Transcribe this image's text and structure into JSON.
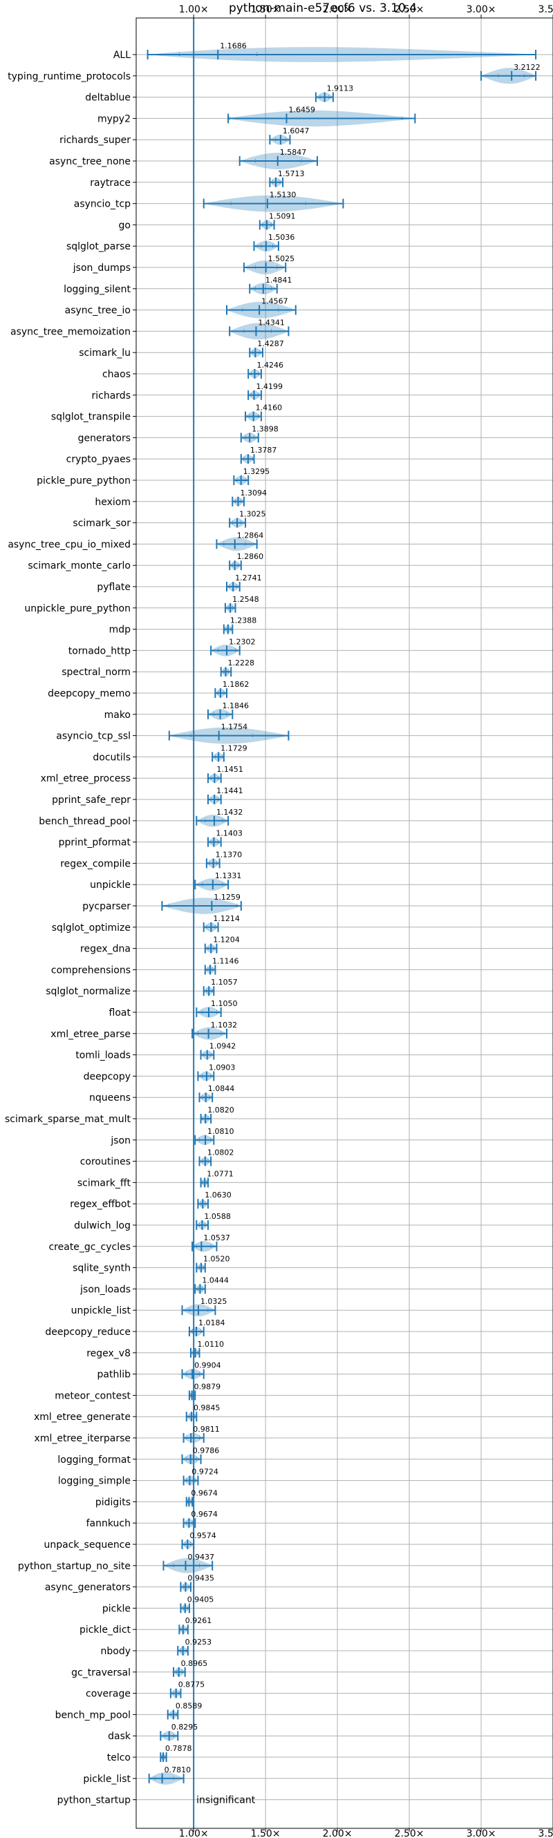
{
  "chart_data": {
    "type": "violin",
    "title": "python-main-e57ecf6 vs. 3.10.4",
    "xlabel": "",
    "ylabel": "",
    "xlim": [
      0.6,
      3.5
    ],
    "xticks": [
      1.0,
      1.5,
      2.0,
      2.5,
      3.0,
      3.5
    ],
    "xtick_labels": [
      "1.00×",
      "1.50×",
      "2.00×",
      "2.50×",
      "3.00×",
      "3.50×"
    ],
    "xaxis_position": "top-and-bottom",
    "grid": true,
    "reference_line_x": 1.0,
    "benchmarks": [
      {
        "name": "ALL",
        "value": "1.1686",
        "mean": 1.1686,
        "min": 0.68,
        "max": 3.38,
        "q1": 0.9,
        "q3": 1.44
      },
      {
        "name": "typing_runtime_protocols",
        "value": "3.2122",
        "mean": 3.2122,
        "min": 3.0,
        "max": 3.38,
        "q1": 3.12,
        "q3": 3.3
      },
      {
        "name": "deltablue",
        "value": "1.9113",
        "mean": 1.9113,
        "min": 1.85,
        "max": 1.97,
        "q1": 1.88,
        "q3": 1.94
      },
      {
        "name": "mypy2",
        "value": "1.6459",
        "mean": 1.6459,
        "min": 1.24,
        "max": 2.54,
        "q1": 1.25,
        "q3": 2.45
      },
      {
        "name": "richards_super",
        "value": "1.6047",
        "mean": 1.6047,
        "min": 1.53,
        "max": 1.67,
        "q1": 1.57,
        "q3": 1.64
      },
      {
        "name": "async_tree_none",
        "value": "1.5847",
        "mean": 1.5847,
        "min": 1.32,
        "max": 1.86,
        "q1": 1.43,
        "q3": 1.75
      },
      {
        "name": "raytrace",
        "value": "1.5713",
        "mean": 1.5713,
        "min": 1.53,
        "max": 1.62,
        "q1": 1.55,
        "q3": 1.6
      },
      {
        "name": "asyncio_tcp",
        "value": "1.5130",
        "mean": 1.513,
        "min": 1.07,
        "max": 2.04,
        "q1": 1.26,
        "q3": 1.78
      },
      {
        "name": "go",
        "value": "1.5091",
        "mean": 1.5091,
        "min": 1.46,
        "max": 1.56,
        "q1": 1.48,
        "q3": 1.54
      },
      {
        "name": "sqlglot_parse",
        "value": "1.5036",
        "mean": 1.5036,
        "min": 1.42,
        "max": 1.59,
        "q1": 1.47,
        "q3": 1.55
      },
      {
        "name": "json_dumps",
        "value": "1.5025",
        "mean": 1.5025,
        "min": 1.35,
        "max": 1.64,
        "q1": 1.43,
        "q3": 1.58
      },
      {
        "name": "logging_silent",
        "value": "1.4841",
        "mean": 1.4841,
        "min": 1.39,
        "max": 1.58,
        "q1": 1.43,
        "q3": 1.54
      },
      {
        "name": "async_tree_io",
        "value": "1.4567",
        "mean": 1.4567,
        "min": 1.23,
        "max": 1.71,
        "q1": 1.34,
        "q3": 1.59
      },
      {
        "name": "async_tree_memoization",
        "value": "1.4341",
        "mean": 1.4341,
        "min": 1.25,
        "max": 1.66,
        "q1": 1.35,
        "q3": 1.54
      },
      {
        "name": "scimark_lu",
        "value": "1.4287",
        "mean": 1.4287,
        "min": 1.39,
        "max": 1.48,
        "q1": 1.41,
        "q3": 1.46
      },
      {
        "name": "chaos",
        "value": "1.4246",
        "mean": 1.4246,
        "min": 1.38,
        "max": 1.47,
        "q1": 1.4,
        "q3": 1.45
      },
      {
        "name": "richards",
        "value": "1.4199",
        "mean": 1.4199,
        "min": 1.38,
        "max": 1.47,
        "q1": 1.4,
        "q3": 1.45
      },
      {
        "name": "sqlglot_transpile",
        "value": "1.4160",
        "mean": 1.416,
        "min": 1.36,
        "max": 1.47,
        "q1": 1.39,
        "q3": 1.45
      },
      {
        "name": "generators",
        "value": "1.3898",
        "mean": 1.3898,
        "min": 1.33,
        "max": 1.45,
        "q1": 1.36,
        "q3": 1.42
      },
      {
        "name": "crypto_pyaes",
        "value": "1.3787",
        "mean": 1.3787,
        "min": 1.33,
        "max": 1.42,
        "q1": 1.35,
        "q3": 1.41
      },
      {
        "name": "pickle_pure_python",
        "value": "1.3295",
        "mean": 1.3295,
        "min": 1.28,
        "max": 1.38,
        "q1": 1.3,
        "q3": 1.36
      },
      {
        "name": "hexiom",
        "value": "1.3094",
        "mean": 1.3094,
        "min": 1.27,
        "max": 1.35,
        "q1": 1.29,
        "q3": 1.33
      },
      {
        "name": "scimark_sor",
        "value": "1.3025",
        "mean": 1.3025,
        "min": 1.25,
        "max": 1.36,
        "q1": 1.27,
        "q3": 1.33
      },
      {
        "name": "async_tree_cpu_io_mixed",
        "value": "1.2864",
        "mean": 1.2864,
        "min": 1.16,
        "max": 1.44,
        "q1": 1.21,
        "q3": 1.36
      },
      {
        "name": "scimark_monte_carlo",
        "value": "1.2860",
        "mean": 1.286,
        "min": 1.25,
        "max": 1.33,
        "q1": 1.27,
        "q3": 1.31
      },
      {
        "name": "pyflate",
        "value": "1.2741",
        "mean": 1.2741,
        "min": 1.23,
        "max": 1.32,
        "q1": 1.25,
        "q3": 1.3
      },
      {
        "name": "unpickle_pure_python",
        "value": "1.2548",
        "mean": 1.2548,
        "min": 1.22,
        "max": 1.29,
        "q1": 1.24,
        "q3": 1.27
      },
      {
        "name": "mdp",
        "value": "1.2388",
        "mean": 1.2388,
        "min": 1.21,
        "max": 1.27,
        "q1": 1.22,
        "q3": 1.26
      },
      {
        "name": "tornado_http",
        "value": "1.2302",
        "mean": 1.2302,
        "min": 1.12,
        "max": 1.32,
        "q1": 1.17,
        "q3": 1.29
      },
      {
        "name": "spectral_norm",
        "value": "1.2228",
        "mean": 1.2228,
        "min": 1.19,
        "max": 1.26,
        "q1": 1.21,
        "q3": 1.24
      },
      {
        "name": "deepcopy_memo",
        "value": "1.1862",
        "mean": 1.1862,
        "min": 1.15,
        "max": 1.23,
        "q1": 1.17,
        "q3": 1.21
      },
      {
        "name": "mako",
        "value": "1.1846",
        "mean": 1.1846,
        "min": 1.1,
        "max": 1.27,
        "q1": 1.14,
        "q3": 1.23
      },
      {
        "name": "asyncio_tcp_ssl",
        "value": "1.1754",
        "mean": 1.1754,
        "min": 0.83,
        "max": 1.66,
        "q1": 0.98,
        "q3": 1.41
      },
      {
        "name": "docutils",
        "value": "1.1729",
        "mean": 1.1729,
        "min": 1.13,
        "max": 1.21,
        "q1": 1.15,
        "q3": 1.2
      },
      {
        "name": "xml_etree_process",
        "value": "1.1451",
        "mean": 1.1451,
        "min": 1.1,
        "max": 1.19,
        "q1": 1.12,
        "q3": 1.17
      },
      {
        "name": "pprint_safe_repr",
        "value": "1.1441",
        "mean": 1.1441,
        "min": 1.1,
        "max": 1.19,
        "q1": 1.12,
        "q3": 1.17
      },
      {
        "name": "bench_thread_pool",
        "value": "1.1432",
        "mean": 1.1432,
        "min": 1.02,
        "max": 1.24,
        "q1": 1.08,
        "q3": 1.2
      },
      {
        "name": "pprint_pformat",
        "value": "1.1403",
        "mean": 1.1403,
        "min": 1.1,
        "max": 1.19,
        "q1": 1.12,
        "q3": 1.17
      },
      {
        "name": "regex_compile",
        "value": "1.1370",
        "mean": 1.137,
        "min": 1.09,
        "max": 1.18,
        "q1": 1.11,
        "q3": 1.16
      },
      {
        "name": "unpickle",
        "value": "1.1331",
        "mean": 1.1331,
        "min": 1.01,
        "max": 1.24,
        "q1": 1.06,
        "q3": 1.2
      },
      {
        "name": "pycparser",
        "value": "1.1259",
        "mean": 1.1259,
        "min": 0.78,
        "max": 1.33,
        "q1": 0.83,
        "q3": 1.3
      },
      {
        "name": "sqlglot_optimize",
        "value": "1.1214",
        "mean": 1.1214,
        "min": 1.07,
        "max": 1.17,
        "q1": 1.09,
        "q3": 1.15
      },
      {
        "name": "regex_dna",
        "value": "1.1204",
        "mean": 1.1204,
        "min": 1.08,
        "max": 1.16,
        "q1": 1.1,
        "q3": 1.14
      },
      {
        "name": "comprehensions",
        "value": "1.1146",
        "mean": 1.1146,
        "min": 1.08,
        "max": 1.15,
        "q1": 1.1,
        "q3": 1.13
      },
      {
        "name": "sqlglot_normalize",
        "value": "1.1057",
        "mean": 1.1057,
        "min": 1.07,
        "max": 1.14,
        "q1": 1.09,
        "q3": 1.13
      },
      {
        "name": "float",
        "value": "1.1050",
        "mean": 1.105,
        "min": 1.02,
        "max": 1.19,
        "q1": 1.06,
        "q3": 1.16
      },
      {
        "name": "xml_etree_parse",
        "value": "1.1032",
        "mean": 1.1032,
        "min": 0.99,
        "max": 1.23,
        "q1": 1.03,
        "q3": 1.19
      },
      {
        "name": "tomli_loads",
        "value": "1.0942",
        "mean": 1.0942,
        "min": 1.05,
        "max": 1.14,
        "q1": 1.07,
        "q3": 1.12
      },
      {
        "name": "deepcopy",
        "value": "1.0903",
        "mean": 1.0903,
        "min": 1.03,
        "max": 1.14,
        "q1": 1.06,
        "q3": 1.12
      },
      {
        "name": "nqueens",
        "value": "1.0844",
        "mean": 1.0844,
        "min": 1.04,
        "max": 1.13,
        "q1": 1.06,
        "q3": 1.11
      },
      {
        "name": "scimark_sparse_mat_mult",
        "value": "1.0820",
        "mean": 1.082,
        "min": 1.05,
        "max": 1.12,
        "q1": 1.06,
        "q3": 1.1
      },
      {
        "name": "json",
        "value": "1.0810",
        "mean": 1.081,
        "min": 1.01,
        "max": 1.14,
        "q1": 1.04,
        "q3": 1.12
      },
      {
        "name": "coroutines",
        "value": "1.0802",
        "mean": 1.0802,
        "min": 1.04,
        "max": 1.12,
        "q1": 1.06,
        "q3": 1.1
      },
      {
        "name": "scimark_fft",
        "value": "1.0771",
        "mean": 1.0771,
        "min": 1.05,
        "max": 1.1,
        "q1": 1.06,
        "q3": 1.09
      },
      {
        "name": "regex_effbot",
        "value": "1.0630",
        "mean": 1.063,
        "min": 1.03,
        "max": 1.1,
        "q1": 1.05,
        "q3": 1.08
      },
      {
        "name": "dulwich_log",
        "value": "1.0588",
        "mean": 1.0588,
        "min": 1.02,
        "max": 1.1,
        "q1": 1.04,
        "q3": 1.08
      },
      {
        "name": "create_gc_cycles",
        "value": "1.0537",
        "mean": 1.0537,
        "min": 0.99,
        "max": 1.16,
        "q1": 1.02,
        "q3": 1.12
      },
      {
        "name": "sqlite_synth",
        "value": "1.0520",
        "mean": 1.052,
        "min": 1.02,
        "max": 1.08,
        "q1": 1.04,
        "q3": 1.07
      },
      {
        "name": "json_loads",
        "value": "1.0444",
        "mean": 1.0444,
        "min": 1.01,
        "max": 1.08,
        "q1": 1.03,
        "q3": 1.06
      },
      {
        "name": "unpickle_list",
        "value": "1.0325",
        "mean": 1.0325,
        "min": 0.92,
        "max": 1.15,
        "q1": 0.97,
        "q3": 1.1
      },
      {
        "name": "deepcopy_reduce",
        "value": "1.0184",
        "mean": 1.0184,
        "min": 0.97,
        "max": 1.07,
        "q1": 0.99,
        "q3": 1.05
      },
      {
        "name": "regex_v8",
        "value": "1.0110",
        "mean": 1.011,
        "min": 0.98,
        "max": 1.04,
        "q1": 1.0,
        "q3": 1.03
      },
      {
        "name": "pathlib",
        "value": "0.9904",
        "mean": 0.9904,
        "min": 0.92,
        "max": 1.07,
        "q1": 0.95,
        "q3": 1.04
      },
      {
        "name": "meteor_contest",
        "value": "0.9879",
        "mean": 0.9879,
        "min": 0.97,
        "max": 1.01,
        "q1": 0.98,
        "q3": 1.0
      },
      {
        "name": "xml_etree_generate",
        "value": "0.9845",
        "mean": 0.9845,
        "min": 0.95,
        "max": 1.02,
        "q1": 0.97,
        "q3": 1.01
      },
      {
        "name": "xml_etree_iterparse",
        "value": "0.9811",
        "mean": 0.9811,
        "min": 0.93,
        "max": 1.07,
        "q1": 0.95,
        "q3": 1.04
      },
      {
        "name": "logging_format",
        "value": "0.9786",
        "mean": 0.9786,
        "min": 0.92,
        "max": 1.05,
        "q1": 0.95,
        "q3": 1.02
      },
      {
        "name": "logging_simple",
        "value": "0.9724",
        "mean": 0.9724,
        "min": 0.93,
        "max": 1.03,
        "q1": 0.95,
        "q3": 1.01
      },
      {
        "name": "pidigits",
        "value": "0.9674",
        "mean": 0.9674,
        "min": 0.95,
        "max": 0.99,
        "q1": 0.96,
        "q3": 0.98
      },
      {
        "name": "fannkuch",
        "value": "0.9674",
        "mean": 0.9674,
        "min": 0.93,
        "max": 1.01,
        "q1": 0.95,
        "q3": 0.99
      },
      {
        "name": "unpack_sequence",
        "value": "0.9574",
        "mean": 0.9574,
        "min": 0.92,
        "max": 1.0,
        "q1": 0.94,
        "q3": 0.98
      },
      {
        "name": "python_startup_no_site",
        "value": "0.9437",
        "mean": 0.9437,
        "min": 0.79,
        "max": 1.13,
        "q1": 0.86,
        "q3": 1.04
      },
      {
        "name": "async_generators",
        "value": "0.9435",
        "mean": 0.9435,
        "min": 0.91,
        "max": 0.98,
        "q1": 0.93,
        "q3": 0.97
      },
      {
        "name": "pickle",
        "value": "0.9405",
        "mean": 0.9405,
        "min": 0.91,
        "max": 0.97,
        "q1": 0.93,
        "q3": 0.96
      },
      {
        "name": "pickle_dict",
        "value": "0.9261",
        "mean": 0.9261,
        "min": 0.9,
        "max": 0.96,
        "q1": 0.91,
        "q3": 0.95
      },
      {
        "name": "nbody",
        "value": "0.9253",
        "mean": 0.9253,
        "min": 0.89,
        "max": 0.96,
        "q1": 0.91,
        "q3": 0.95
      },
      {
        "name": "gc_traversal",
        "value": "0.8965",
        "mean": 0.8965,
        "min": 0.86,
        "max": 0.94,
        "q1": 0.88,
        "q3": 0.92
      },
      {
        "name": "coverage",
        "value": "0.8775",
        "mean": 0.8775,
        "min": 0.84,
        "max": 0.91,
        "q1": 0.86,
        "q3": 0.9
      },
      {
        "name": "bench_mp_pool",
        "value": "0.8589",
        "mean": 0.8589,
        "min": 0.82,
        "max": 0.89,
        "q1": 0.84,
        "q3": 0.88
      },
      {
        "name": "dask",
        "value": "0.8295",
        "mean": 0.8295,
        "min": 0.77,
        "max": 0.89,
        "q1": 0.8,
        "q3": 0.86
      },
      {
        "name": "telco",
        "value": "0.7878",
        "mean": 0.7878,
        "min": 0.77,
        "max": 0.81,
        "q1": 0.78,
        "q3": 0.8
      },
      {
        "name": "pickle_list",
        "value": "0.7810",
        "mean": 0.781,
        "min": 0.69,
        "max": 0.93,
        "q1": 0.73,
        "q3": 0.86
      },
      {
        "name": "python_startup",
        "value": "",
        "note": "insignificant"
      }
    ],
    "colors": {
      "violin": "#1f77b4",
      "grid": "#b0b0b0",
      "axis": "#000000"
    }
  }
}
